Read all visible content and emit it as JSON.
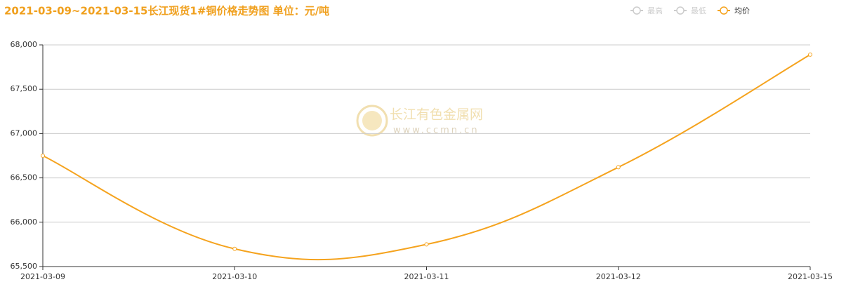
{
  "chart_data": {
    "type": "line",
    "title": "2021-03-09~2021-03-15长江现货1#铜价格走势图 单位：元/吨",
    "watermark": {
      "name": "长江有色金属网",
      "url": "www.ccmn.cn"
    },
    "categories": [
      "2021-03-09",
      "2021-03-10",
      "2021-03-11",
      "2021-03-12",
      "2021-03-15"
    ],
    "series": [
      {
        "name": "最高",
        "color": "#cccccc",
        "visible": false,
        "values": [
          null,
          null,
          null,
          null,
          null
        ]
      },
      {
        "name": "最低",
        "color": "#cccccc",
        "visible": false,
        "values": [
          null,
          null,
          null,
          null,
          null
        ]
      },
      {
        "name": "均价",
        "color": "#f5a31e",
        "visible": true,
        "values": [
          66750,
          65700,
          65750,
          66620,
          67890
        ]
      }
    ],
    "ylim": [
      65500,
      68000
    ],
    "yticks": [
      {
        "value": 65500,
        "label": "65,500"
      },
      {
        "value": 66000,
        "label": "66,000"
      },
      {
        "value": 66500,
        "label": "66,500"
      },
      {
        "value": 67000,
        "label": "67,000"
      },
      {
        "value": 67500,
        "label": "67,500"
      },
      {
        "value": 68000,
        "label": "68,000"
      }
    ],
    "grid": true,
    "legend": "top-right",
    "smooth": true
  }
}
